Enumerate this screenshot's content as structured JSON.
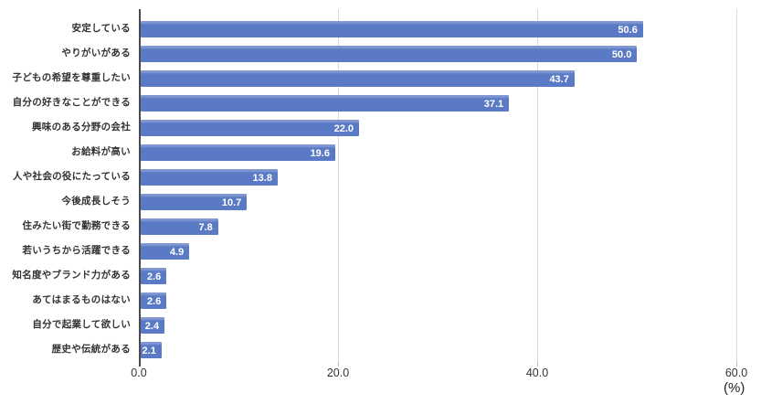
{
  "chart_data": {
    "type": "bar",
    "orientation": "horizontal",
    "title": "",
    "xlabel": "",
    "ylabel": "",
    "unit_label": "(%)",
    "categories": [
      "安定している",
      "やりがいがある",
      "子どもの希望を尊重したい",
      "自分の好きなことができる",
      "興味のある分野の会社",
      "お給料が高い",
      "人や社会の役にたっている",
      "今後成長しそう",
      "住みたい街で勤務できる",
      "若いうちから活躍できる",
      "知名度やブランド力がある",
      "あてはまるものはない",
      "自分で起業して欲しい",
      "歴史や伝統がある"
    ],
    "values": [
      50.6,
      50.0,
      43.7,
      37.1,
      22.0,
      19.6,
      13.8,
      10.7,
      7.8,
      4.9,
      2.6,
      2.6,
      2.4,
      2.1
    ],
    "value_labels": [
      "50.6",
      "50.0",
      "43.7",
      "37.1",
      "22.0",
      "19.6",
      "13.8",
      "10.7",
      "7.8",
      "4.9",
      "2.6",
      "2.6",
      "2.4",
      "2.1"
    ],
    "xlim": [
      0,
      60
    ],
    "x_tick_values": [
      0,
      20,
      40,
      60
    ],
    "x_tick_labels": [
      "0.0",
      "20.0",
      "40.0",
      "60.0"
    ],
    "grid": "vertical",
    "legend_position": "none",
    "colors": {
      "bar_fill": "#5b7ac5",
      "bar_top_highlight": "#8097d2",
      "gridline": "#d9d9d9",
      "axis_line": "#4a4a4a",
      "category_label_text": "#333333",
      "value_label_text": "#ffffff",
      "tick_label_text": "#333333",
      "background": "#ffffff"
    }
  }
}
